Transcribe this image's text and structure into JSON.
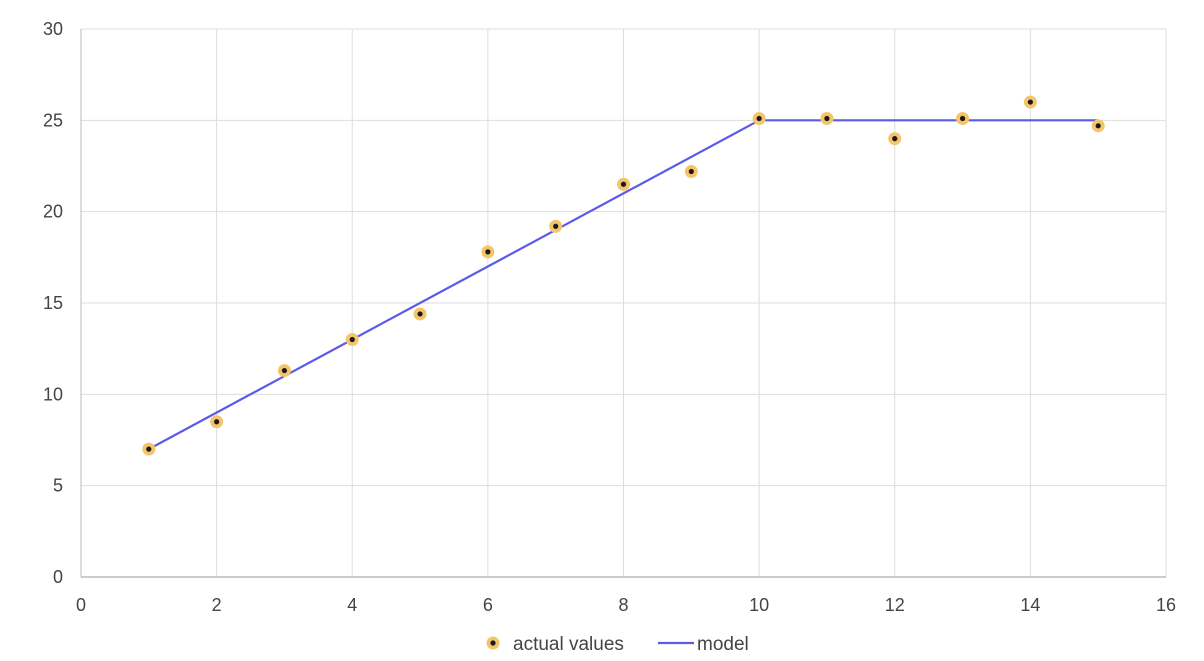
{
  "chart_data": {
    "type": "scatter",
    "xlim": [
      0,
      16
    ],
    "ylim": [
      0,
      30
    ],
    "x_ticks": [
      0,
      2,
      4,
      6,
      8,
      10,
      12,
      14,
      16
    ],
    "y_ticks": [
      0,
      5,
      10,
      15,
      20,
      25,
      30
    ],
    "grid": true,
    "legend_position": "bottom-center",
    "series": [
      {
        "name": "actual values",
        "kind": "scatter",
        "color": "#f5c56b",
        "center_color": "#1a1a1a",
        "points": [
          [
            1,
            7.0
          ],
          [
            2,
            8.5
          ],
          [
            3,
            11.3
          ],
          [
            4,
            13.0
          ],
          [
            5,
            14.4
          ],
          [
            6,
            17.8
          ],
          [
            7,
            19.2
          ],
          [
            8,
            21.5
          ],
          [
            9,
            22.2
          ],
          [
            10,
            25.1
          ],
          [
            11,
            25.1
          ],
          [
            12,
            24.0
          ],
          [
            13,
            25.1
          ],
          [
            14,
            26.0
          ],
          [
            15,
            24.7
          ]
        ]
      },
      {
        "name": "model",
        "kind": "line",
        "color": "#5b5be8",
        "points": [
          [
            1,
            7
          ],
          [
            10,
            25
          ],
          [
            15,
            25
          ]
        ]
      }
    ]
  }
}
